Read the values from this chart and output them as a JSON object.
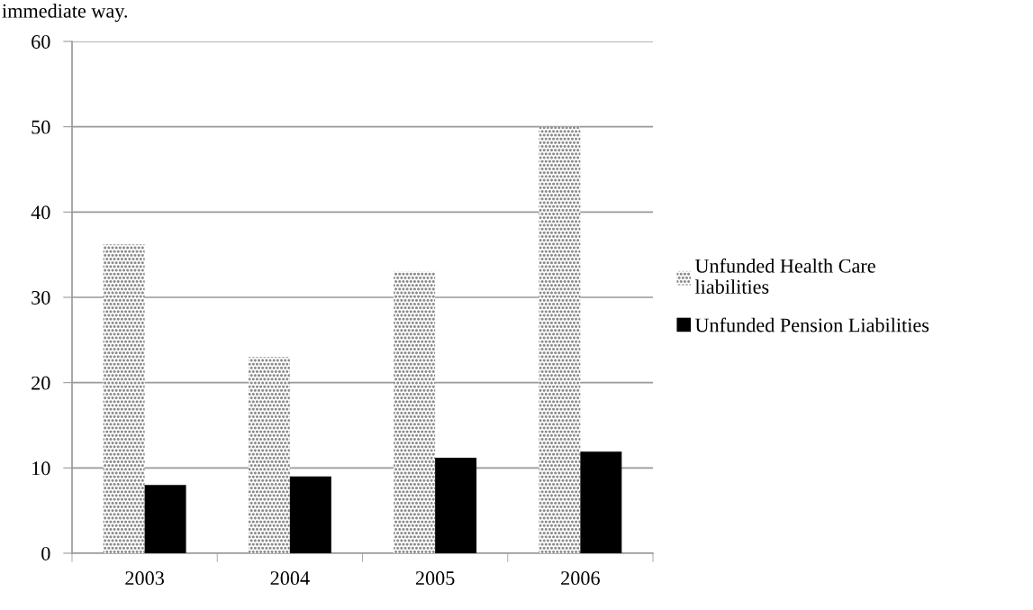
{
  "chart_data": {
    "type": "bar",
    "categories": [
      "2003",
      "2004",
      "2005",
      "2006"
    ],
    "series": [
      {
        "name": "Unfunded Health Care liabilities",
        "color": "#8c8c8c",
        "values": [
          36.2,
          23.0,
          33.0,
          50.0
        ]
      },
      {
        "name": "Unfunded Pension Liabilities",
        "color": "#000000",
        "values": [
          8.0,
          9.0,
          11.2,
          11.9
        ]
      }
    ],
    "ylim": [
      0,
      60
    ],
    "yticks": [
      0,
      10,
      20,
      30,
      40,
      50,
      60
    ],
    "grid": "y",
    "legend": "right",
    "annotations": [
      "immediate way."
    ]
  }
}
